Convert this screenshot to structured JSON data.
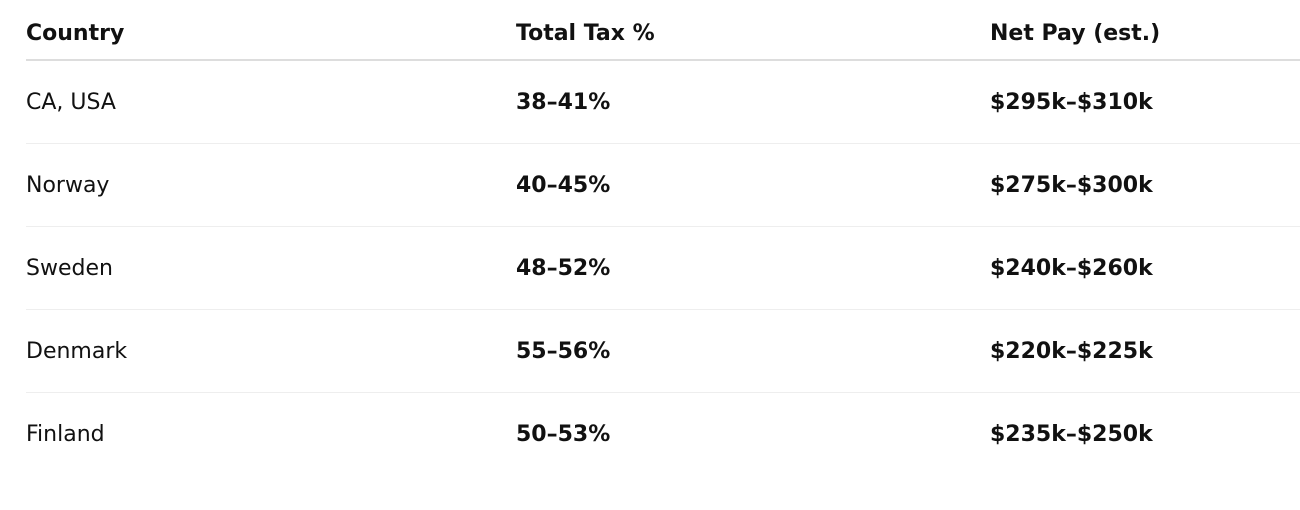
{
  "table": {
    "header": [
      "Country",
      "Total Tax %",
      "Net Pay (est.)"
    ],
    "rows": [
      [
        "CA, USA",
        "38–41%",
        "$295k–$310k"
      ],
      [
        "Norway",
        "40–45%",
        "$275k–$300k"
      ],
      [
        "Sweden",
        "48–52%",
        "$240k–$260k"
      ],
      [
        "Denmark",
        "55–56%",
        "$220k–$225k"
      ],
      [
        "Finland",
        "50–53%",
        "$235k–$250k"
      ]
    ]
  }
}
